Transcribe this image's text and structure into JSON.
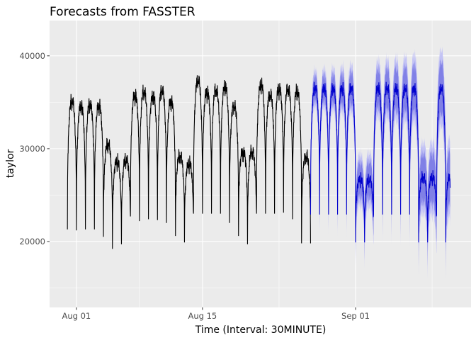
{
  "chart_data": {
    "type": "line",
    "title": "Forecasts from FASSTER",
    "xlabel": "Time (Interval: 30MINUTE)",
    "ylabel": "taylor",
    "x_ticks": [
      {
        "label": "Aug 01",
        "day": 0
      },
      {
        "label": "Aug 15",
        "day": 14
      },
      {
        "label": "Sep 01",
        "day": 31
      }
    ],
    "y_ticks": [
      20000,
      30000,
      40000
    ],
    "xlim_days": [
      -2.98,
      43.82
    ],
    "ylim": [
      12900,
      43800
    ],
    "grid": true,
    "background": "#ebebeb",
    "series": [
      {
        "kind": "history",
        "color": "#000000",
        "x_start_day": -1.0,
        "x_end_day": 26.0,
        "daily_peaks": [
          35500,
          35000,
          35200,
          35000,
          30800,
          29000,
          29200,
          36100,
          36500,
          36000,
          36700,
          35500,
          29500,
          28700,
          37800,
          36500,
          36700,
          37000,
          35000,
          30000,
          30000,
          37200,
          36200,
          36900,
          36800,
          36500,
          29500
        ],
        "daily_troughs": [
          21300,
          21200,
          21300,
          21300,
          20500,
          19200,
          19700,
          22700,
          22200,
          22400,
          22300,
          22000,
          20600,
          19900,
          23000,
          23000,
          23000,
          23000,
          22000,
          20600,
          19700,
          23000,
          23000,
          23000,
          23100,
          22400,
          19800
        ]
      },
      {
        "kind": "forecast",
        "color": "#0000cc",
        "interval_80_color": "#8080e6",
        "interval_95_color": "#c2c2f5",
        "x_start_day": 26.0,
        "x_end_day": 41.5,
        "daily_peaks": [
          36900,
          36900,
          36900,
          36900,
          36900,
          27000,
          27000,
          36900,
          36900,
          36900,
          36900,
          36900,
          27200,
          27200,
          36900,
          27200
        ],
        "daily_troughs": [
          22900,
          22900,
          22900,
          22900,
          22900,
          19900,
          19900,
          22900,
          22900,
          22900,
          22900,
          22900,
          19900,
          19900,
          22900,
          19900
        ],
        "interval_80_halfwidth": 1300,
        "interval_95_halfwidth": 1900,
        "interval_growth_per_day": 0.08
      }
    ]
  }
}
